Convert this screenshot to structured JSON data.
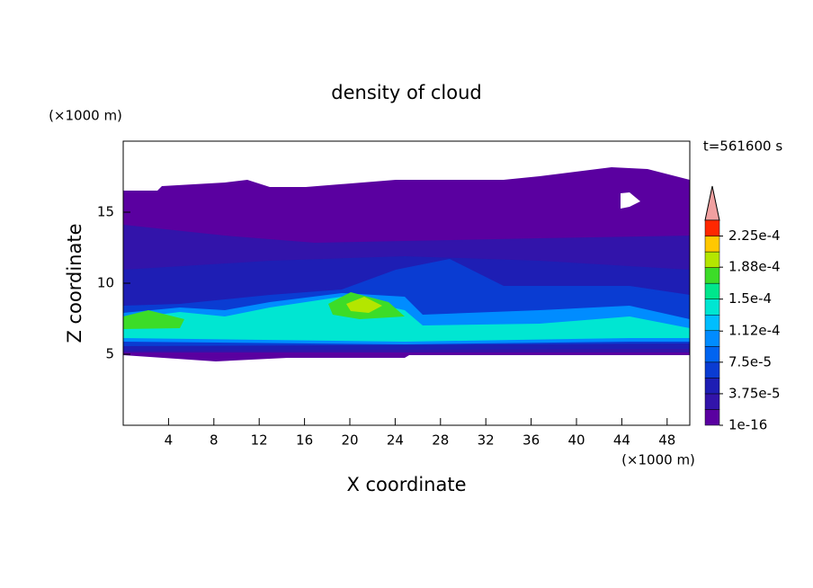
{
  "chart_data": {
    "type": "contour",
    "title": "density of cloud",
    "x_label": "X coordinate",
    "y_label": "Z coordinate",
    "x_unit": "(×1000 m)",
    "y_unit": "(×1000 m)",
    "time_label": "t=561600 s",
    "xlim": [
      0,
      50
    ],
    "xticks": [
      4,
      8,
      12,
      16,
      20,
      24,
      28,
      32,
      36,
      40,
      44,
      48
    ],
    "ylim": [
      0,
      20
    ],
    "yticks": [
      5,
      10,
      15
    ],
    "colorbar": {
      "lim": [
        1e-16,
        0.00024375
      ],
      "colors": [
        "#5a00a0",
        "#3214aa",
        "#1e1eb4",
        "#0a3cd2",
        "#0064f0",
        "#008cff",
        "#00beff",
        "#00e6d2",
        "#00e68c",
        "#3cdc28",
        "#b4e600",
        "#ffc800",
        "#ff2800"
      ],
      "extend_color": "#f0a0a0",
      "ticks": [
        {
          "value": 1e-16,
          "label": "1e-16"
        },
        {
          "value": 3.75e-05,
          "label": "3.75e-5"
        },
        {
          "value": 7.5e-05,
          "label": "7.5e-5"
        },
        {
          "value": 0.000112,
          "label": "1.12e-4"
        },
        {
          "value": 0.00015,
          "label": "1.5e-4"
        },
        {
          "value": 0.000188,
          "label": "1.88e-4"
        },
        {
          "value": 0.000225,
          "label": "2.25e-4"
        }
      ]
    }
  }
}
